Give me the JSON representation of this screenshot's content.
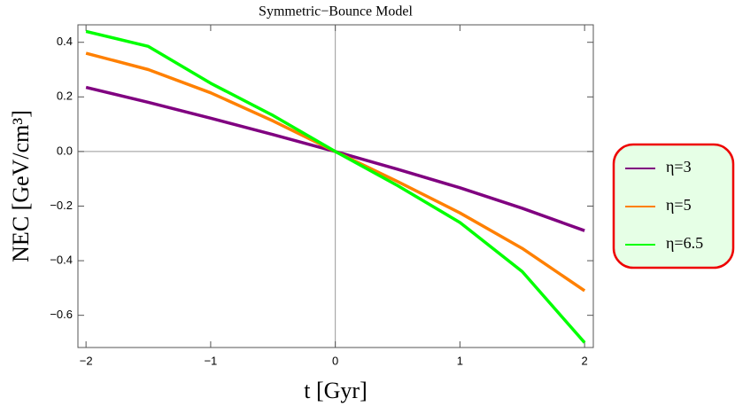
{
  "chart_data": {
    "type": "line",
    "title": "Symmetric−Bounce Model",
    "xlabel": "t [Gyr]",
    "ylabel": "NEC [GeV/cm³]",
    "x": [
      -2,
      -1.5,
      -1,
      -0.5,
      0,
      0.5,
      1,
      1.5,
      2
    ],
    "series": [
      {
        "name": "η=3",
        "color": "#800080",
        "values": [
          0.235,
          0.18,
          0.122,
          0.062,
          0,
          -0.065,
          -0.133,
          -0.208,
          -0.29
        ]
      },
      {
        "name": "η=5",
        "color": "#ff8000",
        "values": [
          0.36,
          0.3,
          0.215,
          0.112,
          0,
          -0.11,
          -0.225,
          -0.355,
          -0.51
        ]
      },
      {
        "name": "η=6.5",
        "color": "#00ff00",
        "values": [
          0.44,
          0.385,
          0.25,
          0.132,
          0,
          -0.125,
          -0.26,
          -0.44,
          -0.7
        ]
      }
    ],
    "xlim": [
      -2.065,
      2.07
    ],
    "ylim": [
      -0.718,
      0.464
    ],
    "xticks": [
      {
        "value": -2,
        "label": "−2"
      },
      {
        "value": -1,
        "label": "−1"
      },
      {
        "value": 0,
        "label": "0"
      },
      {
        "value": 1,
        "label": "1"
      },
      {
        "value": 2,
        "label": "2"
      }
    ],
    "yticks": [
      {
        "value": -0.6,
        "label": "−0.6"
      },
      {
        "value": -0.4,
        "label": "−0.4"
      },
      {
        "value": -0.2,
        "label": "−0.2"
      },
      {
        "value": 0,
        "label": "0.0"
      },
      0.2,
      0.4
    ],
    "grid": false,
    "legend": "right"
  }
}
